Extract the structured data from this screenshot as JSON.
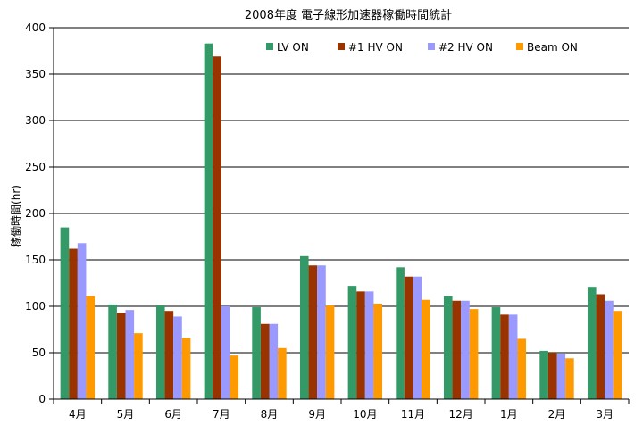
{
  "chart_data": {
    "type": "bar",
    "title": "2008年度 電子線形加速器稼働時間統計",
    "xlabel": "",
    "ylabel": "稼働時間(hr)",
    "ylim": [
      0,
      400
    ],
    "yticks": [
      0,
      50,
      100,
      150,
      200,
      250,
      300,
      350,
      400
    ],
    "grid": true,
    "legend_position": "top-right",
    "categories": [
      "4月",
      "5月",
      "6月",
      "7月",
      "8月",
      "9月",
      "10月",
      "11月",
      "12月",
      "1月",
      "2月",
      "3月"
    ],
    "series": [
      {
        "name": "LV ON",
        "color": "#339966",
        "values": [
          185,
          102,
          101,
          383,
          99,
          154,
          122,
          142,
          111,
          99,
          52,
          121
        ]
      },
      {
        "name": "#1 HV ON",
        "color": "#993300",
        "values": [
          162,
          93,
          95,
          369,
          81,
          144,
          116,
          132,
          106,
          91,
          50,
          113
        ]
      },
      {
        "name": "#2 HV ON",
        "color": "#9999ff",
        "values": [
          168,
          96,
          89,
          100,
          81,
          144,
          116,
          132,
          106,
          91,
          49,
          106
        ]
      },
      {
        "name": "Beam ON",
        "color": "#ff9900",
        "values": [
          111,
          71,
          66,
          47,
          55,
          101,
          103,
          107,
          97,
          65,
          44,
          95
        ]
      }
    ]
  }
}
